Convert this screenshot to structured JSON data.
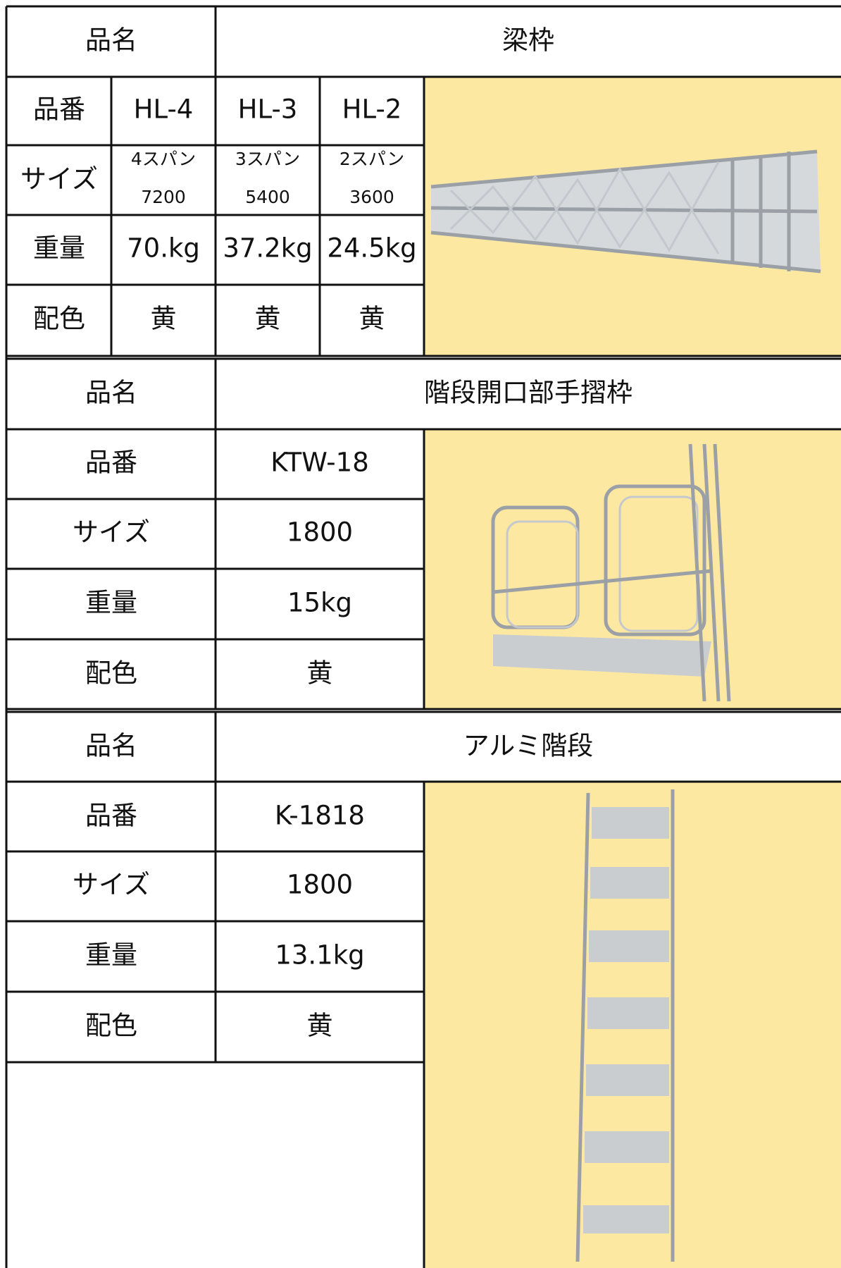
{
  "sections": [
    {
      "name_label": "品名",
      "name": "梁枠",
      "labels": [
        "品番",
        "サイズ",
        "重量",
        "配色"
      ],
      "models": [
        {
          "code": "HL-4",
          "size_top": "4スパン",
          "size_bottom": "7200",
          "weight": "70.kg",
          "color": "黄"
        },
        {
          "code": "HL-3",
          "size_top": "3スパン",
          "size_bottom": "5400",
          "weight": "37.2kg",
          "color": "黄"
        },
        {
          "code": "HL-2",
          "size_top": "2スパン",
          "size_bottom": "3600",
          "weight": "24.5kg",
          "color": "黄"
        }
      ]
    },
    {
      "name_label": "品名",
      "name": "階段開口部手摺枠",
      "labels": [
        "品番",
        "サイズ",
        "重量",
        "配色"
      ],
      "values": [
        "KTW-18",
        "1800",
        "15kg",
        "黄"
      ]
    },
    {
      "name_label": "品名",
      "name": "アルミ階段",
      "labels": [
        "品番",
        "サイズ",
        "重量",
        "配色"
      ],
      "values": [
        "K-1818",
        "1800",
        "13.1kg",
        "黄"
      ]
    }
  ]
}
